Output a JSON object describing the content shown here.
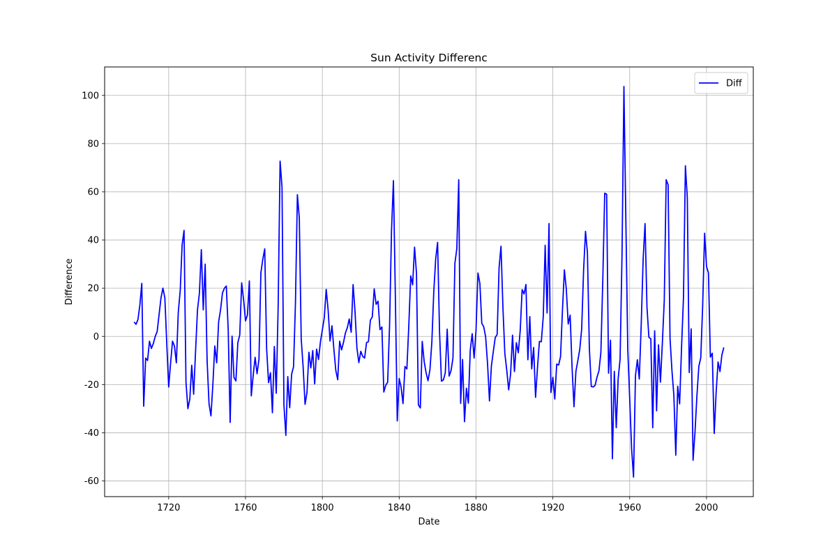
{
  "chart_data": {
    "type": "line",
    "title": "Sun Activity Differenc",
    "x_label": "Date",
    "y_label": "Difference",
    "x": [
      1702,
      1703,
      1704,
      1705,
      1706,
      1707,
      1708,
      1709,
      1710,
      1711,
      1712,
      1713,
      1714,
      1715,
      1716,
      1717,
      1718,
      1719,
      1720,
      1721,
      1722,
      1723,
      1724,
      1725,
      1726,
      1727,
      1728,
      1729,
      1730,
      1731,
      1732,
      1733,
      1734,
      1735,
      1736,
      1737,
      1738,
      1739,
      1740,
      1741,
      1742,
      1743,
      1744,
      1745,
      1746,
      1747,
      1748,
      1749,
      1750,
      1751,
      1752,
      1753,
      1754,
      1755,
      1756,
      1757,
      1758,
      1759,
      1760,
      1761,
      1762,
      1763,
      1764,
      1765,
      1766,
      1767,
      1768,
      1769,
      1770,
      1771,
      1772,
      1773,
      1774,
      1775,
      1776,
      1777,
      1778,
      1779,
      1780,
      1781,
      1782,
      1783,
      1784,
      1785,
      1786,
      1787,
      1788,
      1789,
      1790,
      1791,
      1792,
      1793,
      1794,
      1795,
      1796,
      1797,
      1798,
      1799,
      1800,
      1801,
      1802,
      1803,
      1804,
      1805,
      1806,
      1807,
      1808,
      1809,
      1810,
      1811,
      1812,
      1813,
      1814,
      1815,
      1816,
      1817,
      1818,
      1819,
      1820,
      1821,
      1822,
      1823,
      1824,
      1825,
      1826,
      1827,
      1828,
      1829,
      1830,
      1831,
      1832,
      1833,
      1834,
      1835,
      1836,
      1837,
      1838,
      1839,
      1840,
      1841,
      1842,
      1843,
      1844,
      1845,
      1846,
      1847,
      1848,
      1849,
      1850,
      1851,
      1852,
      1853,
      1854,
      1855,
      1856,
      1857,
      1858,
      1859,
      1860,
      1861,
      1862,
      1863,
      1864,
      1865,
      1866,
      1867,
      1868,
      1869,
      1870,
      1871,
      1872,
      1873,
      1874,
      1875,
      1876,
      1877,
      1878,
      1879,
      1880,
      1881,
      1882,
      1883,
      1884,
      1885,
      1886,
      1887,
      1888,
      1889,
      1890,
      1891,
      1892,
      1893,
      1894,
      1895,
      1896,
      1897,
      1898,
      1899,
      1900,
      1901,
      1902,
      1903,
      1904,
      1905,
      1906,
      1907,
      1908,
      1909,
      1910,
      1911,
      1912,
      1913,
      1914,
      1915,
      1916,
      1917,
      1918,
      1919,
      1920,
      1921,
      1922,
      1923,
      1924,
      1925,
      1926,
      1927,
      1928,
      1929,
      1930,
      1931,
      1932,
      1933,
      1934,
      1935,
      1936,
      1937,
      1938,
      1939,
      1940,
      1941,
      1942,
      1943,
      1944,
      1945,
      1946,
      1947,
      1948,
      1949,
      1950,
      1951,
      1952,
      1953,
      1954,
      1955,
      1956,
      1957,
      1958,
      1959,
      1960,
      1961,
      1962,
      1963,
      1964,
      1965,
      1966,
      1967,
      1968,
      1969,
      1970,
      1971,
      1972,
      1973,
      1974,
      1975,
      1976,
      1977,
      1978,
      1979,
      1980,
      1981,
      1982,
      1983,
      1984,
      1985,
      1986,
      1987,
      1988,
      1989,
      1990,
      1991,
      1992,
      1993,
      1994,
      1995,
      1996,
      1997,
      1998,
      1999,
      2000,
      2001,
      2002,
      2003,
      2004,
      2005,
      2006,
      2007,
      2008,
      2009
    ],
    "series": [
      {
        "name": "Diff",
        "color": "blue",
        "values": [
          6,
          5,
          7,
          13,
          22,
          -29,
          -9,
          -10,
          -2,
          -5,
          -3,
          0,
          2,
          9,
          16,
          20,
          16,
          -3,
          -21,
          -11,
          -2,
          -4,
          -11,
          10,
          19,
          38,
          44,
          -19,
          -30,
          -26,
          -12,
          -24,
          -6,
          11,
          18,
          36,
          11,
          30,
          -10,
          -28,
          -33,
          -20,
          -4,
          -11,
          6,
          11,
          18,
          20,
          20.9,
          2.5,
          -35.7,
          0.1,
          -17.1,
          -18.5,
          -2.6,
          0.6,
          22.2,
          15.2,
          6.4,
          8.9,
          23,
          -24.7,
          -16.1,
          -8.7,
          -15.5,
          -9.5,
          26.4,
          32,
          36.3,
          -5.3,
          -19.2,
          -15.1,
          -31.7,
          -4.2,
          -23.6,
          12.8,
          72.7,
          61.9,
          -28.5,
          -41.1,
          -16.7,
          -29.6,
          -15.7,
          -12.6,
          13.9,
          58.8,
          49.1,
          -1.1,
          -12.8,
          -28.2,
          -23.3,
          -6.6,
          -13.1,
          -5.9,
          -19.7,
          -5.3,
          -9.6,
          -2.3,
          2.7,
          7.7,
          19.5,
          11,
          -1.9,
          4.4,
          -5.3,
          -14.1,
          -18,
          -2,
          -5.6,
          -2.5,
          1.4,
          3.6,
          7.2,
          1.7,
          21.5,
          10.4,
          -4.8,
          -10.9,
          -6.2,
          -8.3,
          -9,
          -2.6,
          -2.2,
          6.7,
          8.1,
          19.7,
          13.3,
          14.6,
          2.8,
          3.9,
          -23.1,
          -20.3,
          -19,
          4.7,
          43.7,
          64.6,
          16.8,
          -35.1,
          -17.5,
          -21.1,
          -27.9,
          -12.5,
          -13.5,
          4.3,
          25.1,
          21.4,
          37,
          26.2,
          -28.4,
          -29.7,
          -2.1,
          -10.4,
          -15.1,
          -18.4,
          -13.9,
          -2.4,
          18.4,
          32.1,
          39,
          2,
          -18.6,
          -18.1,
          -15.1,
          3,
          -16.5,
          -14.2,
          -9,
          30.3,
          36.4,
          65,
          -27.8,
          -9.6,
          -35.4,
          -21.5,
          -27.7,
          -5.7,
          1.1,
          -9,
          2.6,
          26.3,
          22,
          5.4,
          4,
          -0.2,
          -11.3,
          -26.8,
          -12.3,
          -6.3,
          -0.5,
          0.8,
          28.5,
          37.4,
          12.1,
          -7.1,
          -14,
          -22.2,
          -15.6,
          0.5,
          -14.6,
          -2.6,
          -6.8,
          2.3,
          19.4,
          17.6,
          21.5,
          -9.7,
          8.2,
          -13.5,
          -4.6,
          -25.3,
          -12.9,
          -2.1,
          -2.2,
          8.2,
          37.8,
          9.7,
          46.8,
          -23.3,
          -17,
          -26,
          -11.5,
          -11.9,
          -8.4,
          10.9,
          27.6,
          19.6,
          5.1,
          8.8,
          -12.9,
          -29.2,
          -14.5,
          -10.1,
          -5.4,
          3,
          27.4,
          43.6,
          34.7,
          -4.8,
          -20.8,
          -21,
          -20.3,
          -16.9,
          -14.3,
          -6.7,
          23.6,
          59.4,
          59,
          -15.3,
          -1.6,
          -50.8,
          -14.5,
          -37.9,
          -17.6,
          -9.5,
          33.6,
          103.7,
          48.5,
          -5.4,
          -25.8,
          -46.7,
          -58.4,
          -16.3,
          -9.7,
          -17.7,
          4.9,
          31.9,
          46.8,
          12.1,
          -0.4,
          -1,
          -37.9,
          2.3,
          -30.9,
          -3.5,
          -19,
          -2.9,
          14.9,
          65,
          62.9,
          -0.8,
          -14.2,
          -24.5,
          -49.3,
          -20.7,
          -28,
          -4.5,
          16,
          70.8,
          57.4,
          -15,
          3.1,
          -51.4,
          -39.7,
          -24.7,
          -12.4,
          -8.9,
          12.9,
          42.8,
          29,
          26.3,
          -8.6,
          -7,
          -40.3,
          -23.3,
          -10.6,
          -14.6,
          -7.7,
          -4.6
        ]
      }
    ],
    "xlim": [
      1686.65,
      2024.35
    ],
    "xticks": [
      1720,
      1760,
      1800,
      1840,
      1880,
      1920,
      1960,
      2000
    ],
    "ylim": [
      -66.5,
      111.8
    ],
    "yticks": [
      -60,
      -40,
      -20,
      0,
      20,
      40,
      60,
      80,
      100
    ],
    "grid": true,
    "legend": "upper right"
  }
}
